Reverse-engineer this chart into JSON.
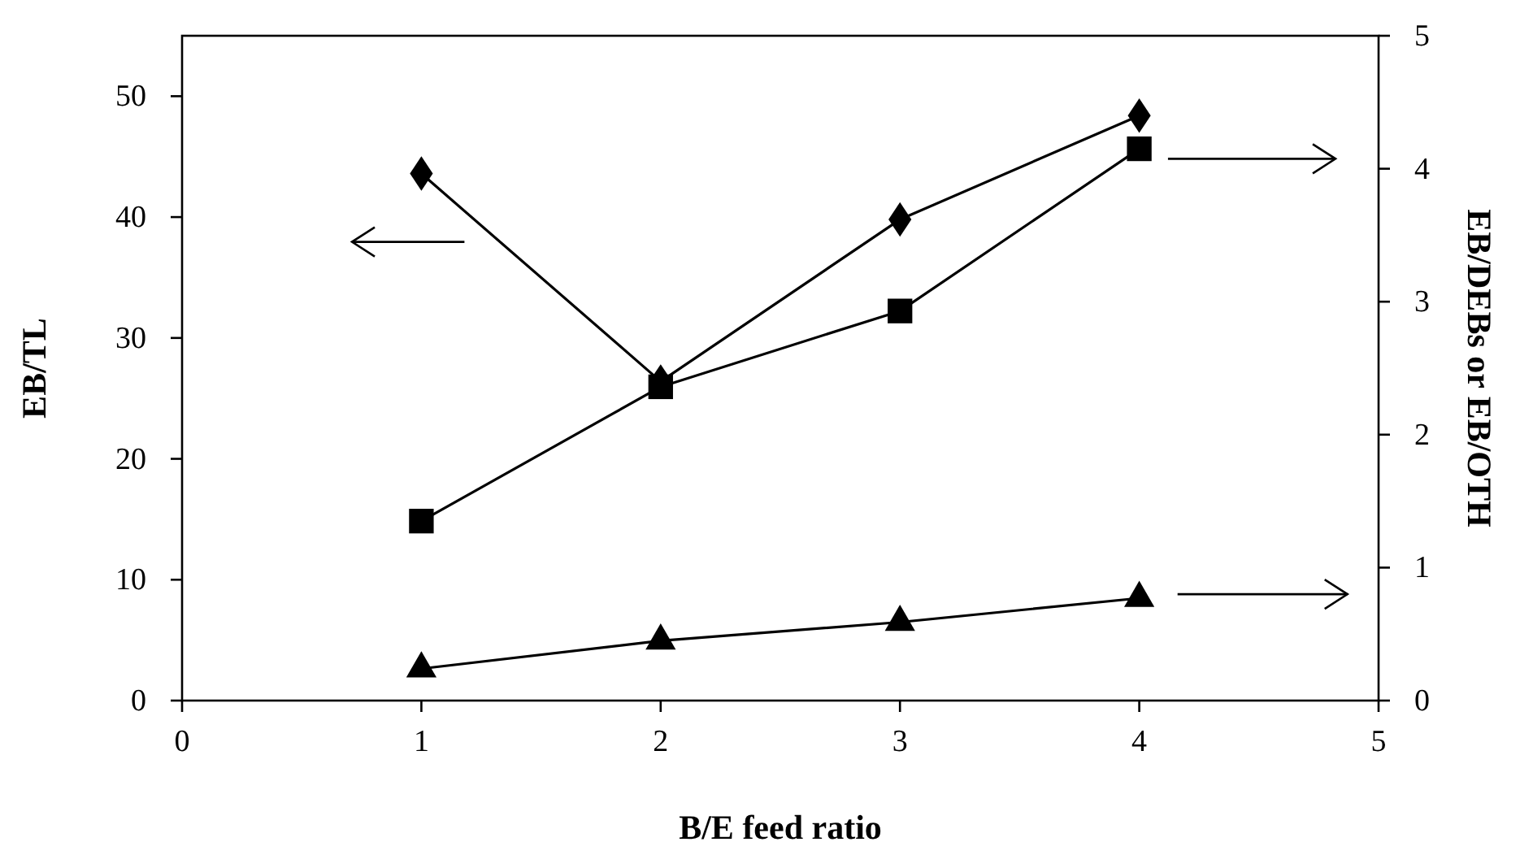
{
  "chart_data": {
    "type": "line",
    "xlabel": "B/E feed ratio",
    "ylabel": "EB/TL",
    "y2label": "EB/DEBs or EB/OTH",
    "x": [
      1,
      2,
      3,
      4
    ],
    "series": [
      {
        "color": "#000000",
        "marker": "diamond",
        "values": [
          43.6,
          26.4,
          39.8,
          48.4
        ]
      },
      {
        "color": "#000000",
        "marker": "square",
        "axis": "y2",
        "values": [
          1.35,
          2.36,
          2.93,
          4.15
        ]
      },
      {
        "color": "#000000",
        "marker": "triangle",
        "axis": "y2",
        "values": [
          0.24,
          0.45,
          0.59,
          0.77
        ]
      }
    ],
    "xlim": [
      0,
      5
    ],
    "xticks": [
      0,
      1,
      2,
      3,
      4,
      5
    ],
    "ylim": [
      0,
      55
    ],
    "yticks": [
      0,
      10,
      20,
      30,
      40,
      50
    ],
    "y2lim": [
      0,
      5
    ],
    "y2ticks": [
      0,
      1,
      2,
      3,
      4,
      5
    ],
    "grid": false,
    "line_style": "solid"
  }
}
